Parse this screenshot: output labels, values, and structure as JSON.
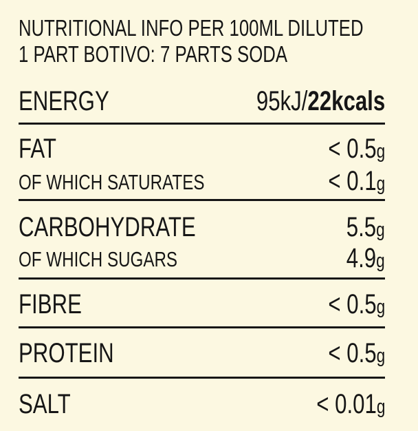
{
  "header": {
    "lines": [
      "NUTRITIONAL INFO PER 100ML DILUTED",
      "1 PART BOTIVO: 7 PARTS SODA"
    ]
  },
  "table": {
    "rows": [
      {
        "label": "ENERGY",
        "value": "95kJ/",
        "value_bold": "22kcals"
      },
      {
        "label": "FAT",
        "value": "< 0.5",
        "unit": "g",
        "sub_label": "OF WHICH SATURATES",
        "sub_value": "< 0.1",
        "sub_unit": "g"
      },
      {
        "label": "CARBOHYDRATE",
        "value": "5.5",
        "unit": "g",
        "sub_label": "OF WHICH SUGARS",
        "sub_value": "4.9",
        "sub_unit": "g"
      },
      {
        "label": "FIBRE",
        "value": "< 0.5",
        "unit": "g"
      },
      {
        "label": "PROTEIN",
        "value": "< 0.5",
        "unit": "g"
      },
      {
        "label": "SALT",
        "value": "< 0.01",
        "unit": "g"
      }
    ]
  }
}
